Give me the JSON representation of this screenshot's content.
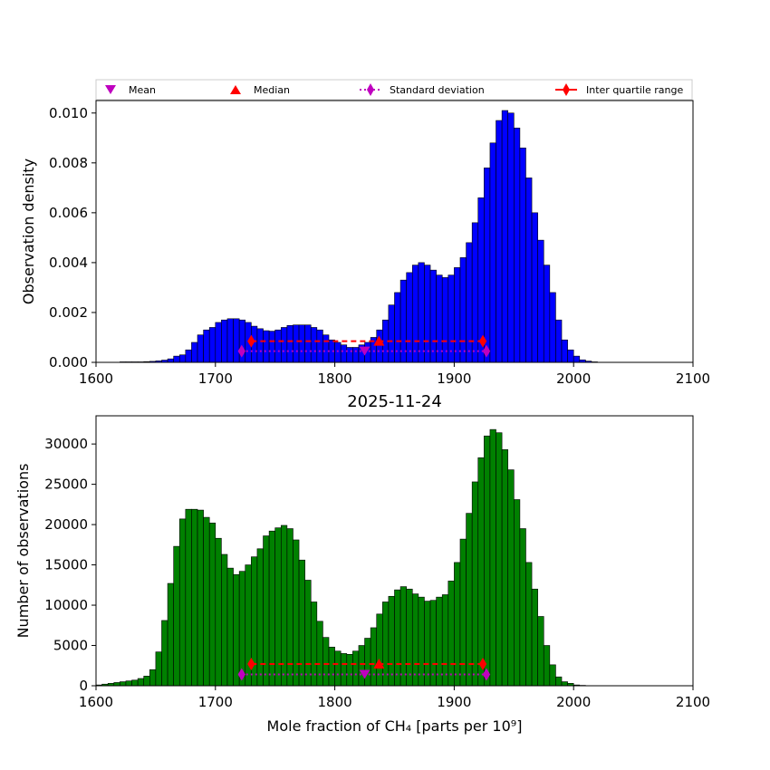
{
  "chart_data": [
    {
      "type": "bar",
      "name": "density-histogram",
      "title": "",
      "xlabel": "",
      "ylabel": "Observation density",
      "xlim": [
        1600,
        2100
      ],
      "ylim": [
        0,
        0.0105
      ],
      "xticks": [
        "1600",
        "1700",
        "1800",
        "1900",
        "2000",
        "2100"
      ],
      "yticks": [
        "0.000",
        "0.002",
        "0.004",
        "0.006",
        "0.008",
        "0.010"
      ],
      "bin_start": 1620,
      "bin_width": 5,
      "bar_color": "#0000ff",
      "values": [
        2e-05,
        2e-05,
        2e-05,
        2e-05,
        3e-05,
        4e-05,
        6e-05,
        9e-05,
        0.00014,
        0.00025,
        0.0003,
        0.0005,
        0.0008,
        0.0011,
        0.0013,
        0.0014,
        0.0016,
        0.0017,
        0.00175,
        0.00175,
        0.0017,
        0.0016,
        0.00145,
        0.00135,
        0.00127,
        0.00125,
        0.0013,
        0.0014,
        0.00148,
        0.0015,
        0.0015,
        0.0015,
        0.0014,
        0.0013,
        0.0011,
        0.0009,
        0.0008,
        0.0007,
        0.0006,
        0.0006,
        0.0007,
        0.0008,
        0.001,
        0.0013,
        0.0017,
        0.0023,
        0.0028,
        0.0033,
        0.0036,
        0.0039,
        0.004,
        0.0039,
        0.0037,
        0.0035,
        0.0034,
        0.0035,
        0.0038,
        0.0042,
        0.0048,
        0.0056,
        0.0066,
        0.0078,
        0.0088,
        0.0097,
        0.0101,
        0.01,
        0.0094,
        0.0086,
        0.0074,
        0.006,
        0.0049,
        0.0039,
        0.0028,
        0.0017,
        0.0009,
        0.0005,
        0.00025,
        0.0001,
        5e-05,
        2e-05
      ],
      "markers": {
        "mean": {
          "x": 1825,
          "y": 0.00045
        },
        "median": {
          "x": 1837,
          "y": 0.00085
        },
        "std": {
          "x": [
            1722,
            1927
          ],
          "y": 0.00045
        },
        "iqr": {
          "x": [
            1730,
            1924
          ],
          "y": 0.00085
        }
      }
    },
    {
      "type": "bar",
      "name": "count-histogram",
      "title": "2025-11-24",
      "xlabel": "Mole fraction of CH₄ [parts per 10⁹]",
      "ylabel": "Number of observations",
      "xlim": [
        1600,
        2100
      ],
      "ylim": [
        0,
        33500
      ],
      "xticks": [
        "1600",
        "1700",
        "1800",
        "1900",
        "2000",
        "2100"
      ],
      "yticks": [
        "0",
        "5000",
        "10000",
        "15000",
        "20000",
        "25000",
        "30000"
      ],
      "bin_start": 1600,
      "bin_width": 5,
      "bar_color": "#008000",
      "values": [
        100,
        200,
        300,
        400,
        500,
        600,
        700,
        900,
        1200,
        2000,
        4200,
        8100,
        12700,
        17300,
        20700,
        21900,
        21900,
        21800,
        20900,
        20200,
        18300,
        16300,
        14600,
        13800,
        14200,
        15000,
        16000,
        17000,
        18600,
        19200,
        19600,
        19900,
        19500,
        18100,
        15600,
        13100,
        10400,
        8000,
        6000,
        4800,
        4300,
        4000,
        3900,
        4300,
        5000,
        5900,
        7200,
        8900,
        10400,
        11100,
        11900,
        12300,
        12000,
        11400,
        11000,
        10500,
        10600,
        11000,
        11300,
        13000,
        15300,
        18200,
        21400,
        25300,
        28300,
        31000,
        31800,
        31400,
        29300,
        26800,
        23100,
        19500,
        15300,
        12000,
        8600,
        5000,
        2600,
        1100,
        500,
        300,
        100,
        50
      ],
      "markers": {
        "mean": {
          "x": 1825,
          "y": 1400
        },
        "median": {
          "x": 1837,
          "y": 2700
        },
        "std": {
          "x": [
            1722,
            1927
          ],
          "y": 1400
        },
        "iqr": {
          "x": [
            1730,
            1924
          ],
          "y": 2700
        }
      }
    }
  ],
  "legend": {
    "mean": "Mean",
    "median": "Median",
    "std": "Standard deviation",
    "iqr": "Inter quartile range",
    "colors": {
      "mean": "#bf00bf",
      "median": "#ff0000",
      "std": "#bf00bf",
      "iqr": "#ff0000"
    }
  }
}
